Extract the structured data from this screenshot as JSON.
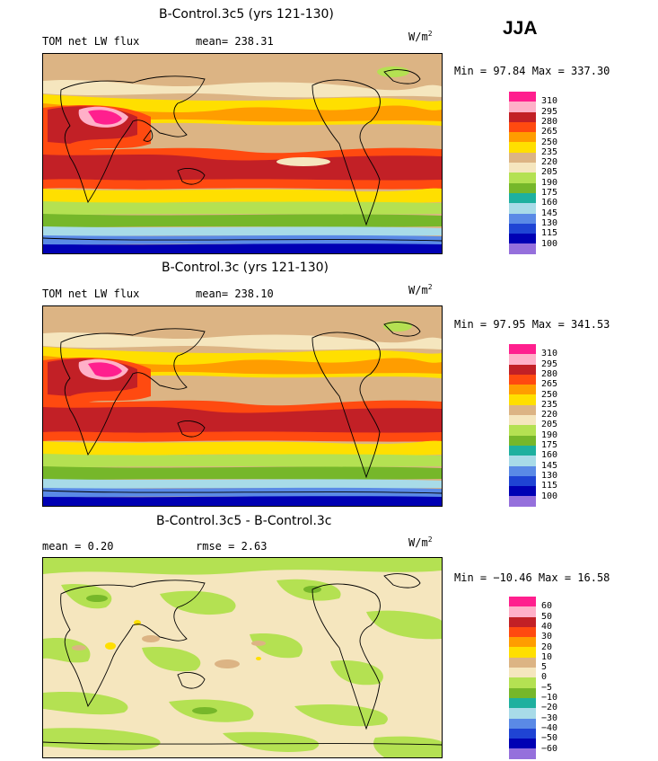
{
  "season": "JJA",
  "panels": [
    {
      "title": "B-Control.3c5 (yrs 121-130)",
      "left_label": "TOM net LW flux",
      "stat_text": "mean= 238.31",
      "units_base": "W/m",
      "units_exp": "2",
      "minmax": "Min =  97.84 Max = 337.30",
      "colorbar": {
        "labels": [
          "310",
          "295",
          "280",
          "265",
          "250",
          "235",
          "220",
          "205",
          "190",
          "175",
          "160",
          "145",
          "130",
          "115",
          "100"
        ],
        "colors": [
          "#ff1f8e",
          "#ffb0c8",
          "#c22026",
          "#ff4a10",
          "#ff9d00",
          "#ffdf00",
          "#dcb484",
          "#f5e6be",
          "#b4e152",
          "#76b72a",
          "#1eb09f",
          "#a8dbe8",
          "#5a8ae6",
          "#1f44d4",
          "#0000b4",
          "#9570dc"
        ]
      }
    },
    {
      "title": "B-Control.3c (yrs 121-130)",
      "left_label": "TOM net LW flux",
      "stat_text": "mean= 238.10",
      "units_base": "W/m",
      "units_exp": "2",
      "minmax": "Min =  97.95 Max = 341.53",
      "colorbar": {
        "labels": [
          "310",
          "295",
          "280",
          "265",
          "250",
          "235",
          "220",
          "205",
          "190",
          "175",
          "160",
          "145",
          "130",
          "115",
          "100"
        ],
        "colors": [
          "#ff1f8e",
          "#ffb0c8",
          "#c22026",
          "#ff4a10",
          "#ff9d00",
          "#ffdf00",
          "#dcb484",
          "#f5e6be",
          "#b4e152",
          "#76b72a",
          "#1eb09f",
          "#a8dbe8",
          "#5a8ae6",
          "#1f44d4",
          "#0000b4",
          "#9570dc"
        ]
      }
    },
    {
      "title": "B-Control.3c5 - B-Control.3c",
      "left_label": "mean =   0.20",
      "stat_text": "rmse =   2.63",
      "units_base": "W/m",
      "units_exp": "2",
      "minmax": "Min = −10.46 Max =  16.58",
      "colorbar": {
        "labels": [
          "60",
          "50",
          "40",
          "30",
          "20",
          "10",
          "5",
          "0",
          "−5",
          "−10",
          "−20",
          "−30",
          "−40",
          "−50",
          "−60"
        ],
        "colors": [
          "#ff1f8e",
          "#ffb0c8",
          "#c22026",
          "#ff4a10",
          "#ff9d00",
          "#ffdf00",
          "#dcb484",
          "#f5e6be",
          "#b4e152",
          "#76b72a",
          "#1eb09f",
          "#a8dbe8",
          "#5a8ae6",
          "#1f44d4",
          "#0000b4",
          "#9570dc"
        ]
      }
    }
  ]
}
